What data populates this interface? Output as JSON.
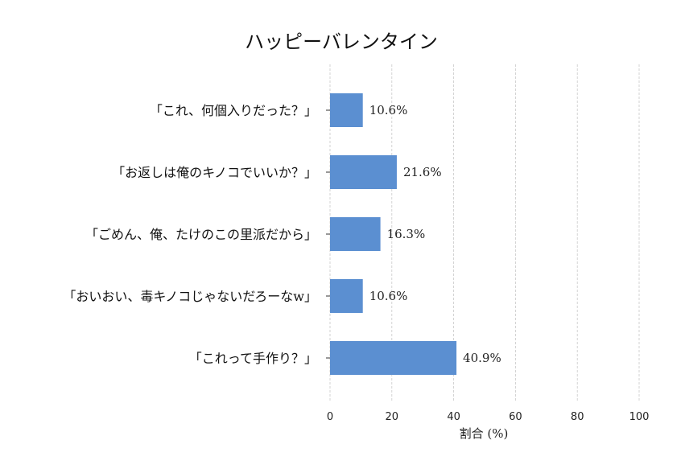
{
  "chart_data": {
    "type": "bar",
    "orientation": "horizontal",
    "title": "ハッピーバレンタイン",
    "xlabel": "割合 (%)",
    "ylabel": "",
    "xlim": [
      0,
      100
    ],
    "x_ticks": [
      0,
      20,
      40,
      60,
      80,
      100
    ],
    "categories": [
      "「これ、何個入りだった？」",
      "「お返しは俺のキノコでいいか？」",
      "「ごめん、俺、たけのこの里派だから」",
      "「おいおい、毒キノコじゃないだろーなw」",
      "「これって手作り？」"
    ],
    "values": [
      10.6,
      21.6,
      16.3,
      10.6,
      40.9
    ],
    "data_labels": [
      "10.6%",
      "21.6%",
      "16.3%",
      "10.6%",
      "40.9%"
    ],
    "grid": "vertical-dashed",
    "bar_color": "#5b8fd1"
  }
}
